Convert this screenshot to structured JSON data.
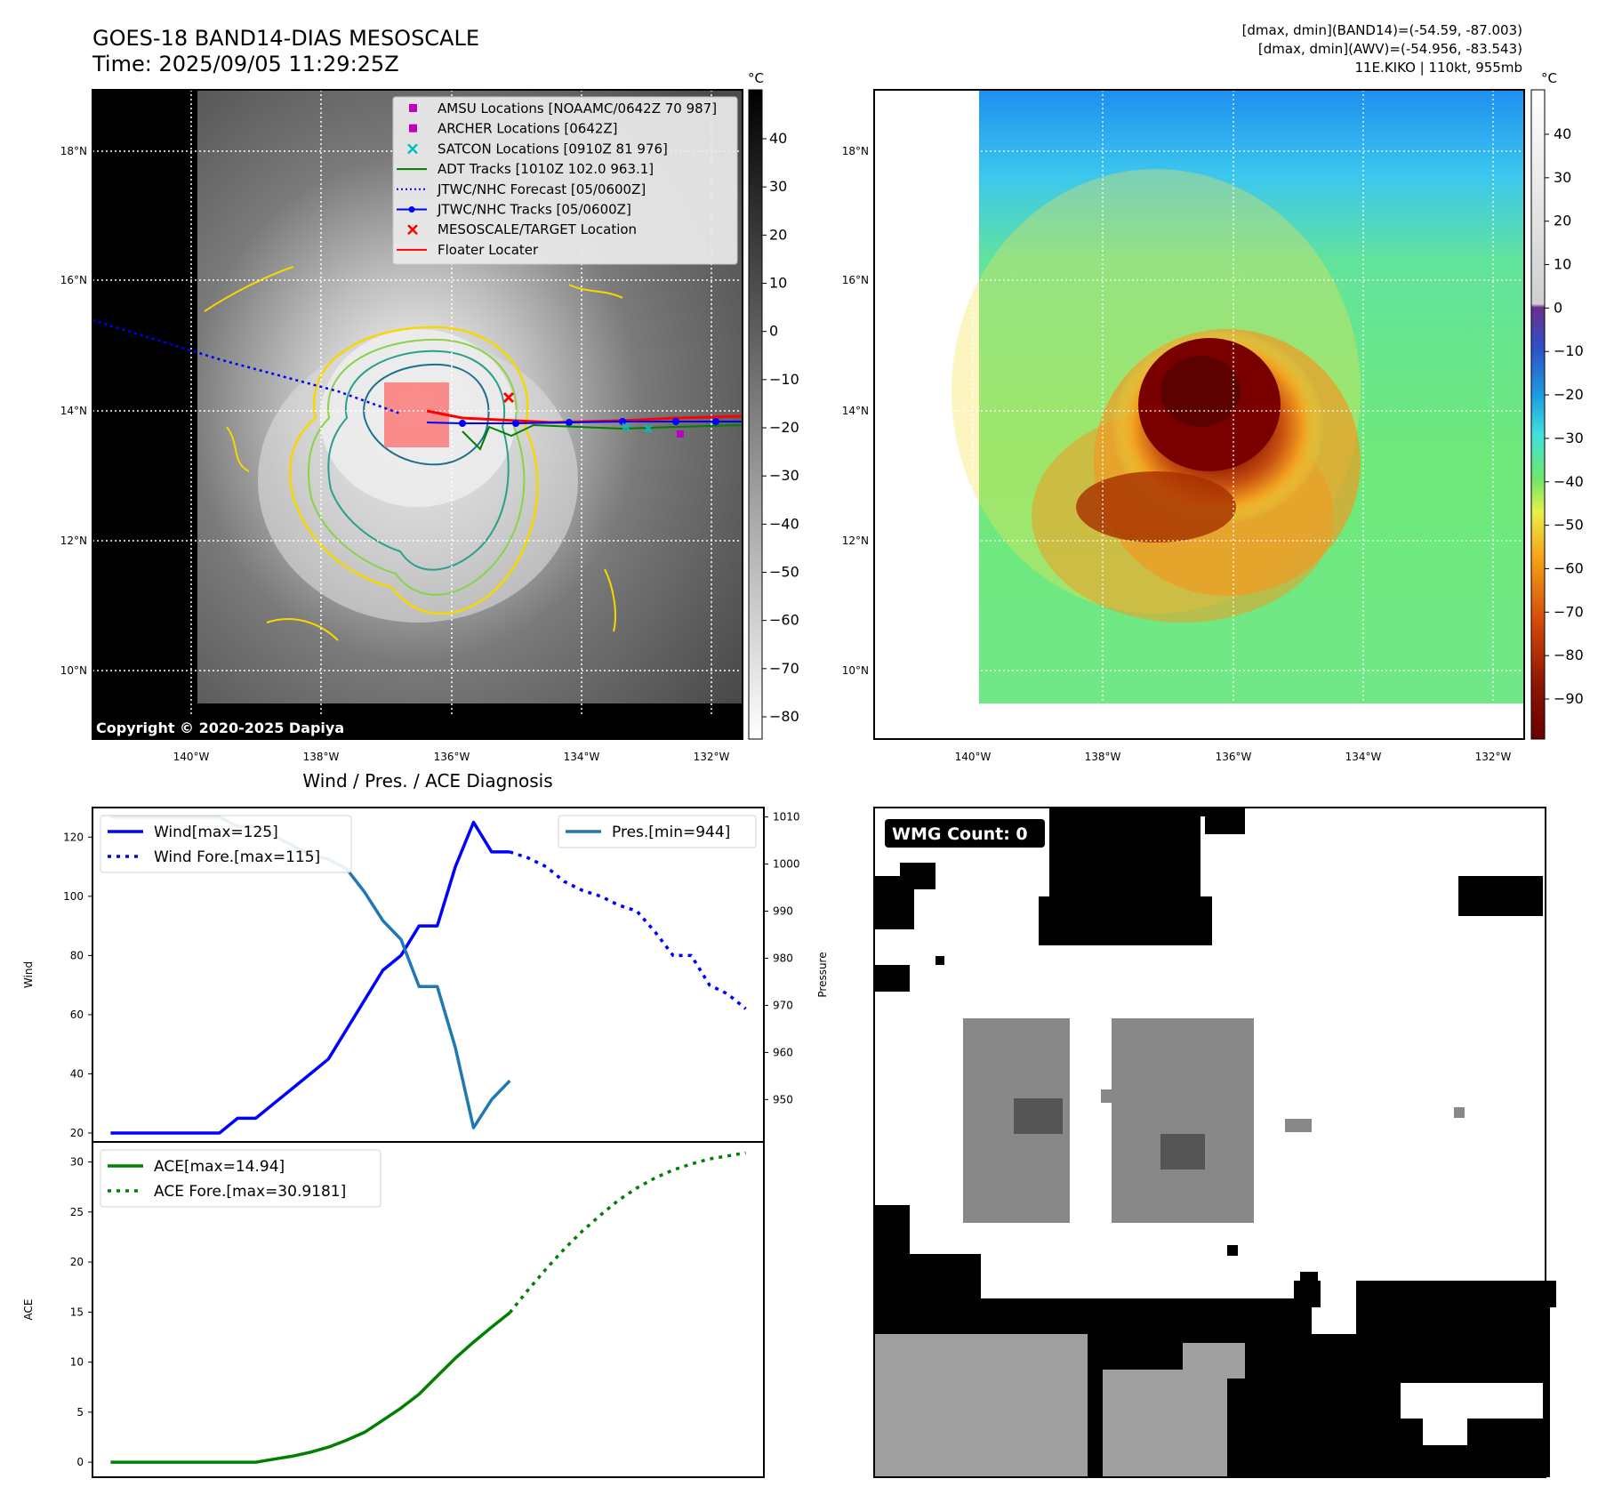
{
  "header": {
    "title_line1": "GOES-18 BAND14-DIAS MESOSCALE",
    "title_line2": "Time: 2025/09/05 11:29:25Z",
    "info_line1": "[dmax, dmin](BAND14)=(-54.59, -87.003)",
    "info_line2": "[dmax, dmin](AWV)=(-54.956, -83.543)",
    "info_line3": "11E.KIKO | 110kt, 955mb"
  },
  "map_axes": {
    "lat_labels": [
      "18°N",
      "16°N",
      "14°N",
      "12°N",
      "10°N"
    ],
    "lon_labels": [
      "140°W",
      "138°W",
      "136°W",
      "134°W",
      "132°W"
    ]
  },
  "colorbar_gray": {
    "unit": "°C",
    "ticks": [
      "40",
      "30",
      "20",
      "10",
      "0",
      "−10",
      "−20",
      "−30",
      "−40",
      "−50",
      "−60",
      "−70",
      "−80"
    ]
  },
  "colorbar_color": {
    "unit": "°C",
    "ticks": [
      "40",
      "30",
      "20",
      "10",
      "0",
      "−10",
      "−20",
      "−30",
      "−40",
      "−50",
      "−60",
      "−70",
      "−80",
      "−90"
    ]
  },
  "legend_ir": [
    {
      "label": "AMSU Locations [NOAAMC/0642Z 70 987]",
      "marker": "square",
      "color": "#bf00bf"
    },
    {
      "label": "ARCHER Locations [0642Z]",
      "marker": "square",
      "color": "#bf00bf"
    },
    {
      "label": "SATCON Locations [0910Z 81 976]",
      "marker": "x",
      "color": "#00bfbf"
    },
    {
      "label": "ADT Tracks [1010Z 102.0 963.1]",
      "marker": "line",
      "color": "#008000"
    },
    {
      "label": "JTWC/NHC Forecast [05/0600Z]",
      "marker": "dotted",
      "color": "#0000ff"
    },
    {
      "label": "JTWC/NHC Tracks [05/0600Z]",
      "marker": "line-dot",
      "color": "#0000ff"
    },
    {
      "label": "MESOSCALE/TARGET Location",
      "marker": "x",
      "color": "#ff0000"
    },
    {
      "label": "Floater Locater",
      "marker": "line",
      "color": "#ff0000"
    }
  ],
  "copyright": "Copyright © 2020-2025 Dapiya",
  "wmg": {
    "label": "WMG Count: 0"
  },
  "colors": {
    "wind": "#0000ff",
    "pressure": "#1f77b4",
    "ace": "#008000"
  },
  "chart_data": [
    {
      "type": "line",
      "title": "Wind / Pres. / ACE Diagnosis",
      "ylabel": "Wind",
      "y2label": "Pressure",
      "ylim": [
        17,
        130
      ],
      "y2lim": [
        941,
        1012
      ],
      "xlim": [
        -1,
        36
      ],
      "yticks": [
        20,
        40,
        60,
        80,
        100,
        120
      ],
      "y2ticks": [
        950,
        960,
        970,
        980,
        990,
        1000,
        1010
      ],
      "legend_left": [
        "Wind[max=125]",
        "Wind Fore.[max=115]"
      ],
      "legend_right": [
        "Pres.[min=944]"
      ],
      "series": [
        {
          "name": "Wind[max=125]",
          "style": "solid",
          "axis": "left",
          "x": [
            0,
            1,
            2,
            3,
            4,
            5,
            6,
            7,
            8,
            9,
            10,
            11,
            12,
            13,
            14,
            15,
            16,
            17,
            18,
            19,
            20,
            21,
            22
          ],
          "y": [
            20,
            20,
            20,
            20,
            20,
            20,
            20,
            25,
            25,
            30,
            35,
            40,
            45,
            55,
            65,
            75,
            80,
            90,
            90,
            110,
            125,
            115,
            115
          ]
        },
        {
          "name": "Wind Fore.[max=115]",
          "style": "dotted",
          "axis": "left",
          "x": [
            22,
            23,
            24,
            25,
            26,
            27,
            28,
            29,
            30,
            31,
            32,
            33,
            34,
            35
          ],
          "y": [
            115,
            113,
            110,
            105,
            102,
            100,
            97,
            95,
            88,
            80,
            80,
            70,
            67,
            62
          ]
        },
        {
          "name": "Pres.[min=944]",
          "style": "solid",
          "axis": "right",
          "x": [
            0,
            1,
            2,
            3,
            4,
            5,
            6,
            7,
            8,
            9,
            10,
            11,
            12,
            13,
            14,
            15,
            16,
            17,
            18,
            19,
            20,
            21,
            22
          ],
          "y": [
            1010,
            1010,
            1010,
            1010,
            1010,
            1010,
            1010,
            1008,
            1008,
            1006,
            1004,
            1002,
            1001,
            999,
            994,
            988,
            984,
            974,
            974,
            961,
            944,
            950,
            954
          ]
        }
      ]
    },
    {
      "type": "line",
      "ylabel": "ACE",
      "ylim": [
        -1.5,
        32
      ],
      "xlim": [
        -1,
        36
      ],
      "yticks": [
        0,
        5,
        10,
        15,
        20,
        25,
        30
      ],
      "legend": [
        "ACE[max=14.94]",
        "ACE Fore.[max=30.9181]"
      ],
      "series": [
        {
          "name": "ACE[max=14.94]",
          "style": "solid",
          "x": [
            0,
            1,
            2,
            3,
            4,
            5,
            6,
            7,
            8,
            9,
            10,
            11,
            12,
            13,
            14,
            15,
            16,
            17,
            18,
            19,
            20,
            21,
            22
          ],
          "y": [
            0,
            0,
            0,
            0,
            0,
            0,
            0,
            0,
            0,
            0.3,
            0.6,
            1.0,
            1.5,
            2.2,
            3.0,
            4.2,
            5.4,
            6.8,
            8.6,
            10.4,
            12.0,
            13.5,
            14.94
          ]
        },
        {
          "name": "ACE Fore.[max=30.9181]",
          "style": "dotted",
          "x": [
            22,
            23,
            24,
            25,
            26,
            27,
            28,
            29,
            30,
            31,
            32,
            33,
            34,
            35
          ],
          "y": [
            14.94,
            17.2,
            19.3,
            21.3,
            23.1,
            24.7,
            26.2,
            27.4,
            28.4,
            29.2,
            29.8,
            30.3,
            30.6,
            30.92
          ]
        }
      ]
    }
  ]
}
